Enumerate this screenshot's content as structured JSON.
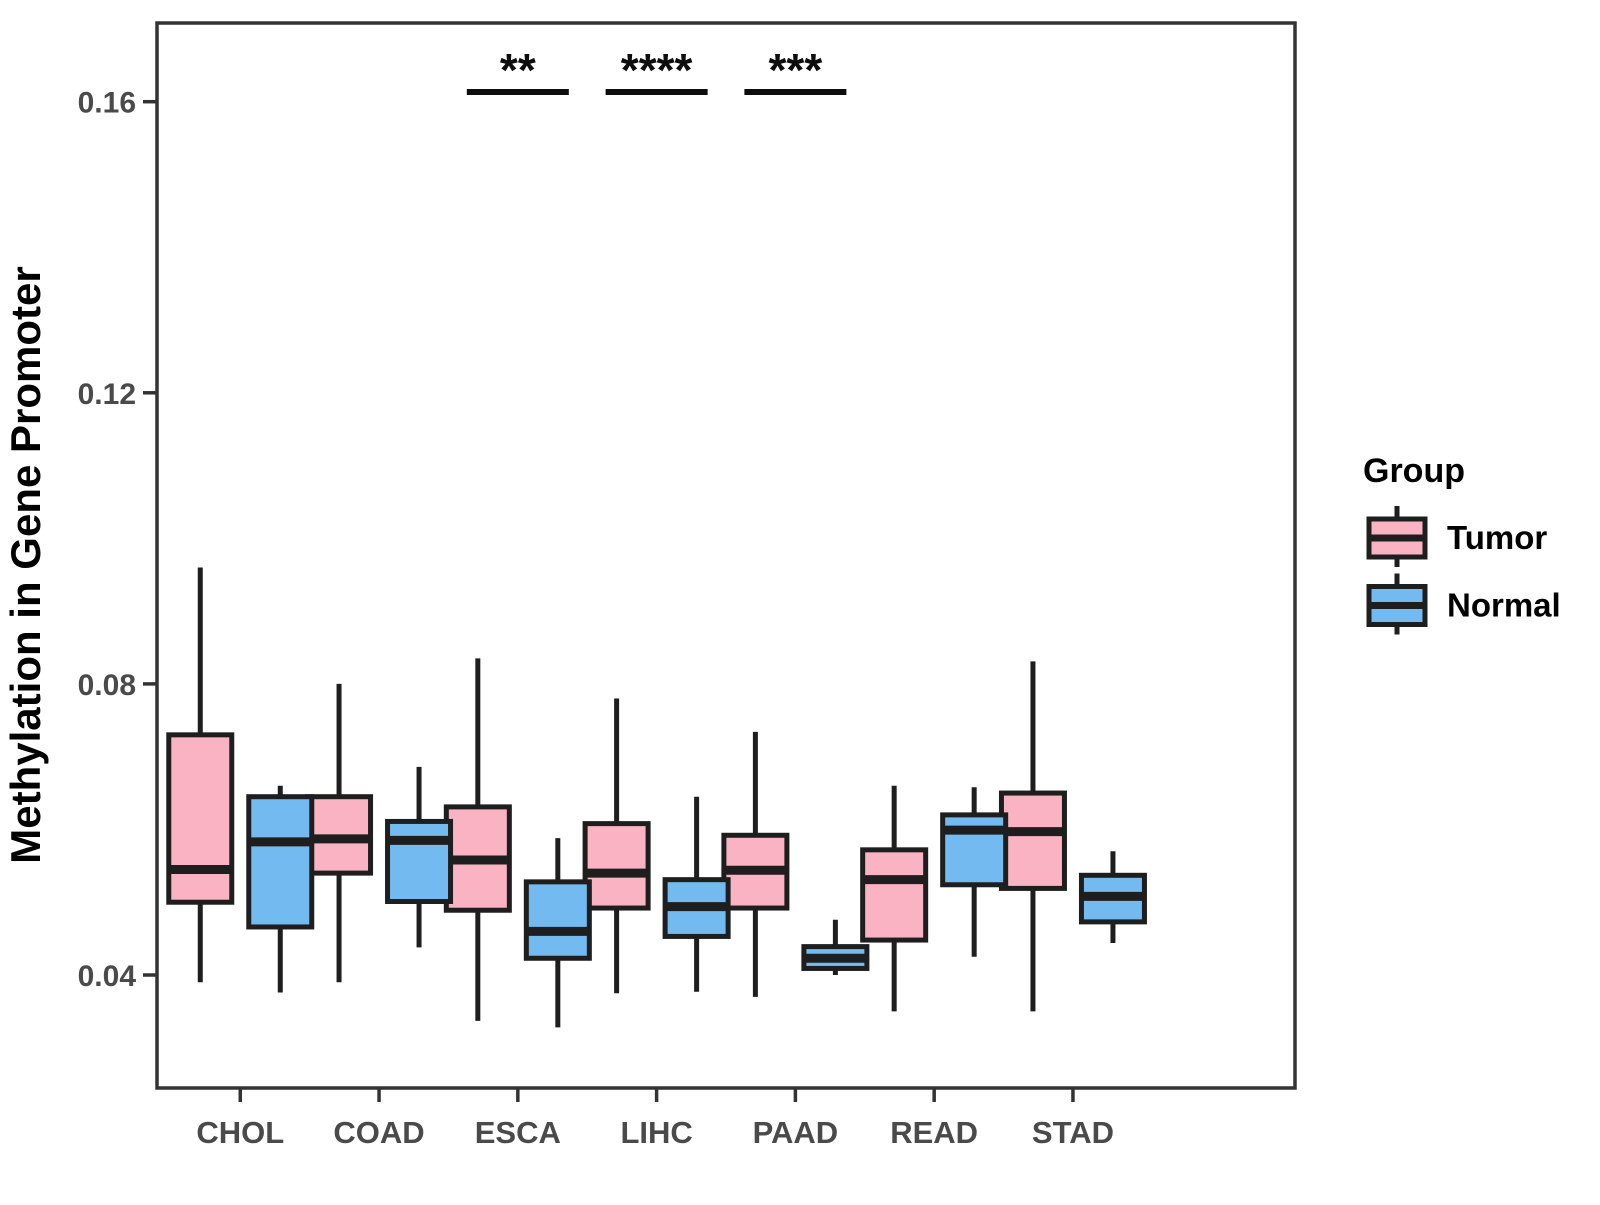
{
  "chart_data": {
    "type": "boxplot",
    "title": "",
    "xlabel": "",
    "ylabel": "Methylation in Gene Promoter",
    "categories": [
      "CHOL",
      "COAD",
      "ESCA",
      "LIHC",
      "PAAD",
      "READ",
      "STAD"
    ],
    "yticks": [
      0.04,
      0.08,
      0.12,
      0.16
    ],
    "ytick_labels": [
      "0.04",
      "0.08",
      "0.12",
      "0.16"
    ],
    "ylim": [
      0.0245,
      0.171
    ],
    "grid": false,
    "legend": {
      "title": "Group",
      "position": "right"
    },
    "groups": [
      {
        "name": "Tumor",
        "color": "#FAB3C2"
      },
      {
        "name": "Normal",
        "color": "#73BAF1"
      }
    ],
    "series": [
      {
        "name": "Tumor",
        "boxes": [
          {
            "category": "CHOL",
            "low": 0.039,
            "q1": 0.05,
            "median": 0.0545,
            "q3": 0.073,
            "high": 0.096
          },
          {
            "category": "COAD",
            "low": 0.039,
            "q1": 0.054,
            "median": 0.0587,
            "q3": 0.0645,
            "high": 0.08
          },
          {
            "category": "ESCA",
            "low": 0.0337,
            "q1": 0.0489,
            "median": 0.0558,
            "q3": 0.0631,
            "high": 0.0835
          },
          {
            "category": "LIHC",
            "low": 0.0375,
            "q1": 0.0492,
            "median": 0.054,
            "q3": 0.0608,
            "high": 0.078
          },
          {
            "category": "PAAD",
            "low": 0.037,
            "q1": 0.0492,
            "median": 0.0544,
            "q3": 0.0592,
            "high": 0.0734
          },
          {
            "category": "READ",
            "low": 0.035,
            "q1": 0.0448,
            "median": 0.0531,
            "q3": 0.0572,
            "high": 0.066
          },
          {
            "category": "STAD",
            "low": 0.035,
            "q1": 0.0519,
            "median": 0.0597,
            "q3": 0.065,
            "high": 0.0831
          }
        ]
      },
      {
        "name": "Normal",
        "boxes": [
          {
            "category": "CHOL",
            "low": 0.0376,
            "q1": 0.0466,
            "median": 0.0583,
            "q3": 0.0645,
            "high": 0.066
          },
          {
            "category": "COAD",
            "low": 0.0438,
            "q1": 0.0501,
            "median": 0.0585,
            "q3": 0.0611,
            "high": 0.0686
          },
          {
            "category": "ESCA",
            "low": 0.0328,
            "q1": 0.0423,
            "median": 0.046,
            "q3": 0.0528,
            "high": 0.0588
          },
          {
            "category": "LIHC",
            "low": 0.0377,
            "q1": 0.0453,
            "median": 0.0494,
            "q3": 0.0531,
            "high": 0.0645
          },
          {
            "category": "PAAD",
            "low": 0.04,
            "q1": 0.0409,
            "median": 0.0423,
            "q3": 0.0439,
            "high": 0.0476
          },
          {
            "category": "READ",
            "low": 0.0425,
            "q1": 0.0524,
            "median": 0.0599,
            "q3": 0.062,
            "high": 0.0658
          },
          {
            "category": "STAD",
            "low": 0.0444,
            "q1": 0.0473,
            "median": 0.0508,
            "q3": 0.0537,
            "high": 0.057
          }
        ]
      }
    ],
    "significance": [
      {
        "category": "ESCA",
        "label": "**"
      },
      {
        "category": "LIHC",
        "label": "****"
      },
      {
        "category": "PAAD",
        "label": "***"
      }
    ],
    "style": {
      "line_color": "#1E1E1E",
      "border_color": "#333333",
      "tick_color": "#333333",
      "background": "#FFFFFF"
    }
  }
}
